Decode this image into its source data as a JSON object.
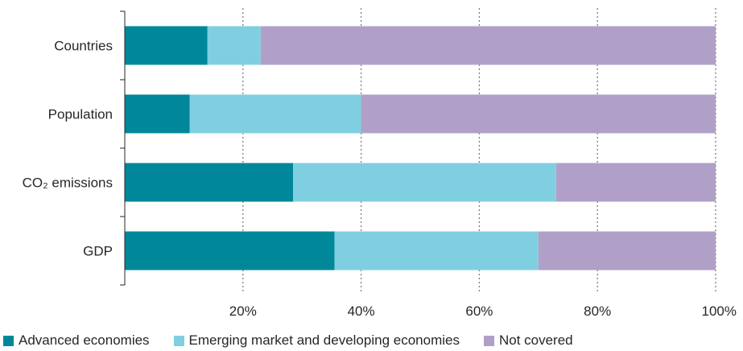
{
  "chart_data": {
    "type": "bar",
    "orientation": "horizontal",
    "stacked": true,
    "categories": [
      "Countries",
      "Population",
      "CO₂ emissions",
      "GDP"
    ],
    "series": [
      {
        "name": "Advanced economies",
        "color": "#00889a",
        "values": [
          14,
          11,
          28.5,
          35.5
        ]
      },
      {
        "name": "Emerging market and developing economies",
        "color": "#80cfe0",
        "values": [
          9,
          29,
          44.5,
          34.5
        ]
      },
      {
        "name": "Not covered",
        "color": "#b0a0c8",
        "values": [
          77,
          60,
          27,
          30
        ]
      }
    ],
    "x_ticks": [
      "20%",
      "40%",
      "60%",
      "80%",
      "100%"
    ],
    "xlim": [
      0,
      100
    ],
    "grid": "vertical dotted",
    "legend_position": "bottom"
  }
}
